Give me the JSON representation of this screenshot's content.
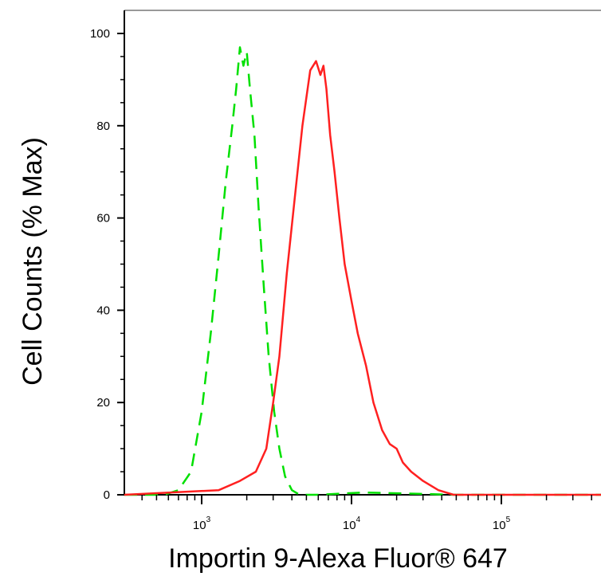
{
  "chart_data": {
    "type": "line",
    "title": "",
    "xlabel": "Importin 9-Alexa Fluor® 647",
    "ylabel": "Cell Counts (% Max)",
    "x_scale": "log",
    "x_range": [
      250,
      600000
    ],
    "ylim": [
      0,
      105
    ],
    "y_ticks": [
      "0",
      "20",
      "40",
      "60",
      "80",
      "100"
    ],
    "x_ticks": [
      {
        "base": "10",
        "exp": "3"
      },
      {
        "base": "10",
        "exp": "4"
      },
      {
        "base": "10",
        "exp": "5"
      }
    ],
    "grid": false,
    "legend": "none",
    "series": [
      {
        "color": "#00e000",
        "dash": "dashed",
        "x": [
          300,
          560,
          700,
          850,
          1000,
          1150,
          1300,
          1450,
          1600,
          1700,
          1800,
          1900,
          2000,
          2100,
          2250,
          2400,
          2600,
          2800,
          3050,
          3300,
          3600,
          4000,
          4500,
          6000,
          12000,
          50000,
          600000
        ],
        "y": [
          0,
          0,
          1,
          5,
          18,
          35,
          52,
          68,
          80,
          88,
          97,
          93,
          96,
          88,
          78,
          62,
          45,
          30,
          18,
          10,
          4,
          1,
          0,
          0,
          0.5,
          0,
          0
        ]
      },
      {
        "color": "#ff2020",
        "dash": "solid",
        "x": [
          300,
          1300,
          1800,
          2300,
          2700,
          3000,
          3300,
          3700,
          4200,
          4700,
          5300,
          5800,
          6200,
          6500,
          6800,
          7200,
          7700,
          8300,
          9000,
          10000,
          11000,
          12500,
          14000,
          16000,
          18000,
          20000,
          22000,
          25000,
          30000,
          38000,
          48000,
          60000,
          600000
        ],
        "y": [
          0,
          1,
          3,
          5,
          10,
          20,
          30,
          48,
          65,
          80,
          92,
          94,
          91,
          93,
          88,
          78,
          70,
          60,
          50,
          42,
          35,
          28,
          20,
          14,
          11,
          10,
          7,
          5,
          3,
          1,
          0,
          0,
          0
        ]
      }
    ]
  }
}
